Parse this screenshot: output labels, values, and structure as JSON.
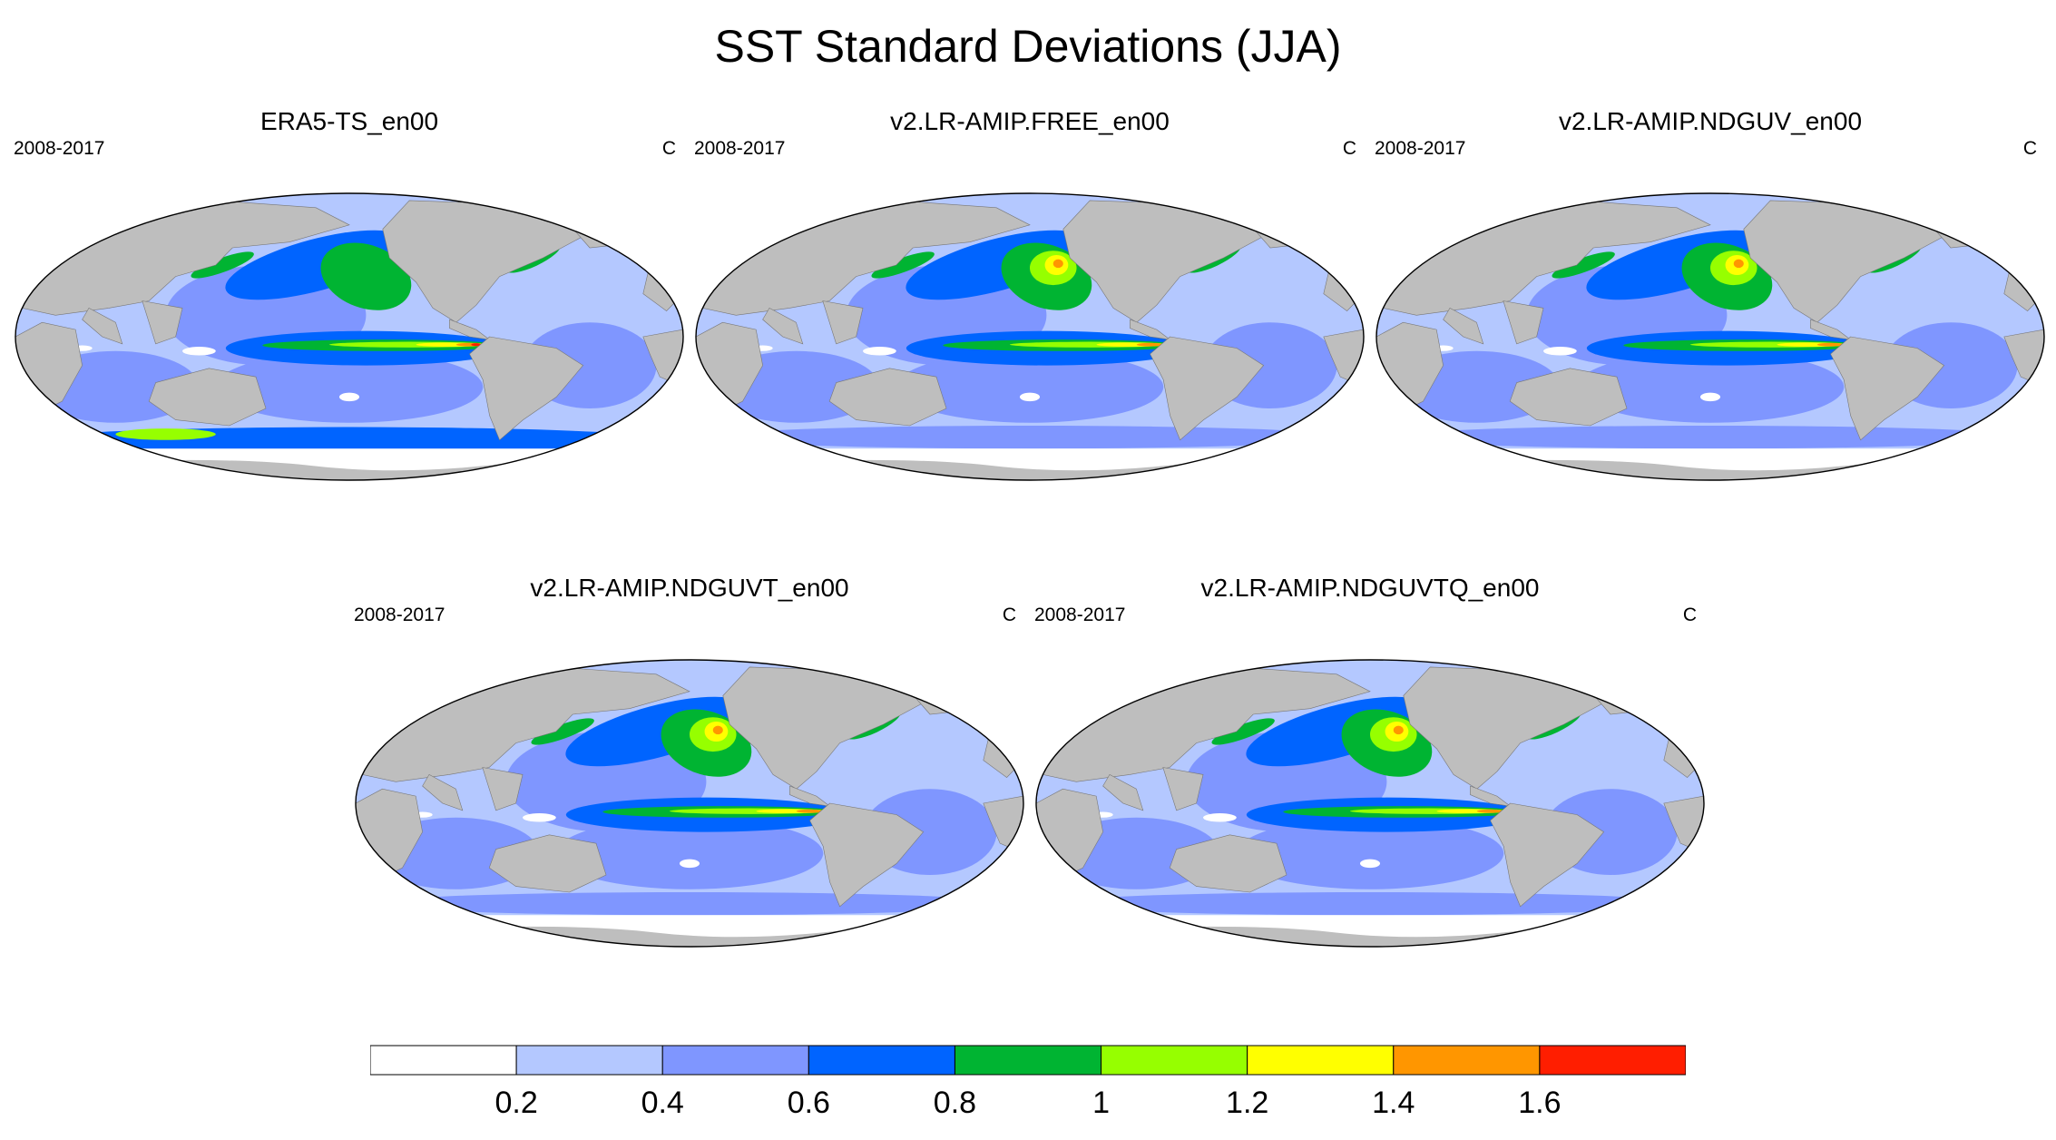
{
  "chart_data": {
    "type": "heatmap",
    "title": "SST Standard Deviations (JJA)",
    "projection": "Robinson",
    "units": "C",
    "period": "2008-2017",
    "panels": [
      {
        "title": "ERA5-TS_en00",
        "period": "2008-2017",
        "units": "C",
        "equatorial_peak": 1.6,
        "north_pacific_peak": 1.0,
        "southern_ocean_variability": 0.8
      },
      {
        "title": "v2.LR-AMIP.FREE_en00",
        "period": "2008-2017",
        "units": "C",
        "equatorial_peak": 1.4,
        "north_pacific_peak": 1.4,
        "southern_ocean_variability": 0.4
      },
      {
        "title": "v2.LR-AMIP.NDGUV_en00",
        "period": "2008-2017",
        "units": "C",
        "equatorial_peak": 1.4,
        "north_pacific_peak": 1.4,
        "southern_ocean_variability": 0.4
      },
      {
        "title": "v2.LR-AMIP.NDGUVT_en00",
        "period": "2008-2017",
        "units": "C",
        "equatorial_peak": 1.4,
        "north_pacific_peak": 1.4,
        "southern_ocean_variability": 0.4
      },
      {
        "title": "v2.LR-AMIP.NDGUVTQ_en00",
        "period": "2008-2017",
        "units": "C",
        "equatorial_peak": 1.4,
        "north_pacific_peak": 1.4,
        "southern_ocean_variability": 0.4
      }
    ],
    "colorbar": {
      "levels": [
        0.2,
        0.4,
        0.6,
        0.8,
        1.0,
        1.2,
        1.4,
        1.6
      ],
      "tick_labels": [
        "0.2",
        "0.4",
        "0.6",
        "0.8",
        "1",
        "1.2",
        "1.4",
        "1.6"
      ],
      "colors": [
        "#ffffff",
        "#b4c8ff",
        "#7f96ff",
        "#0064ff",
        "#00b432",
        "#96ff00",
        "#ffff00",
        "#ff9600",
        "#ff1e00"
      ],
      "placement": "bottom"
    },
    "land_color": "#bebebe"
  }
}
